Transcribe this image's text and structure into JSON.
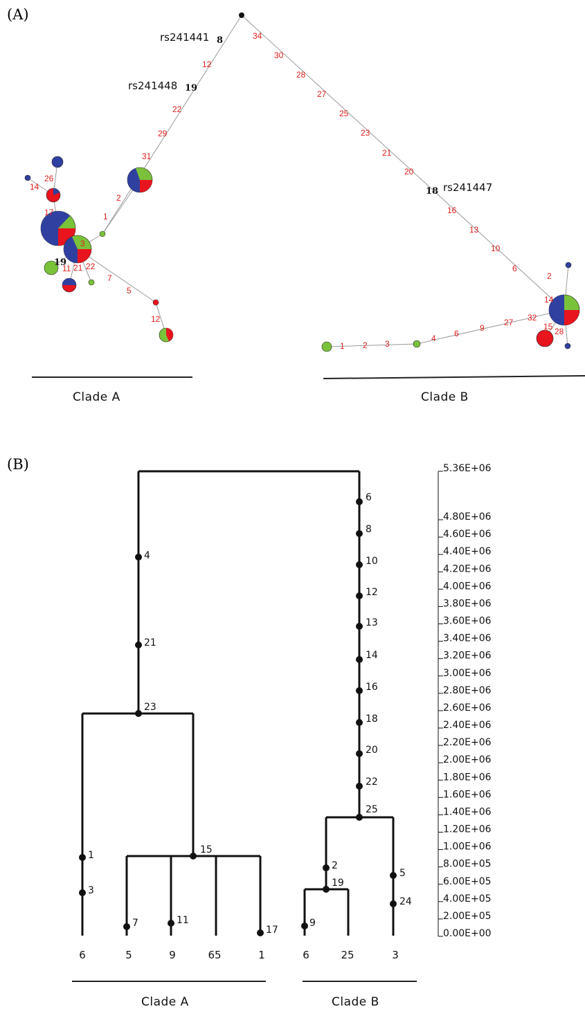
{
  "panelA": {
    "label": "(A)",
    "snp_labels": [
      "rs241441",
      "rs241448",
      "rs241447"
    ],
    "black_mutations": [
      "8",
      "19",
      "18",
      "19"
    ],
    "trunk_a": [
      "12",
      "22",
      "29",
      "31"
    ],
    "trunk_b": [
      "34",
      "30",
      "28",
      "27",
      "25",
      "23",
      "21",
      "20",
      "16",
      "13",
      "10",
      "6"
    ],
    "clade_a_misc": [
      "2",
      "1",
      "3",
      "26",
      "14",
      "17",
      "11",
      "21",
      "22",
      "7",
      "5",
      "12"
    ],
    "clade_b_misc": [
      "2",
      "14",
      "15",
      "28",
      "32",
      "27",
      "9",
      "6",
      "4",
      "3",
      "2",
      "1"
    ],
    "clade_a_title": "Clade A",
    "clade_b_title": "Clade B",
    "colors": {
      "blue": "#3040a0",
      "green": "#7ac23a",
      "red": "#e8141e"
    }
  },
  "panelB": {
    "label": "(B)",
    "clade_a_nodes": [
      "4",
      "21",
      "23",
      "15",
      "1",
      "3",
      "7",
      "11",
      "17"
    ],
    "clade_b_nodes": [
      "6",
      "8",
      "10",
      "12",
      "13",
      "14",
      "16",
      "18",
      "20",
      "22",
      "25",
      "2",
      "19",
      "9",
      "5",
      "24"
    ],
    "leaf_counts": [
      "6",
      "5",
      "9",
      "65",
      "1",
      "6",
      "25",
      "3"
    ],
    "clade_a_title": "Clade A",
    "clade_b_title": "Clade B",
    "scale_top": "5.36E+06",
    "scale_ticks": [
      "4.80E+06",
      "4.60E+06",
      "4.40E+06",
      "4.20E+06",
      "4.00E+06",
      "3.80E+06",
      "3.60E+06",
      "3.40E+06",
      "3.20E+06",
      "3.00E+06",
      "2.80E+06",
      "2.60E+06",
      "2.40E+06",
      "2.20E+06",
      "2.00E+06",
      "1.80E+06",
      "1.60E+06",
      "1.40E+06",
      "1.20E+06",
      "1.00E+06",
      "8.00E+05",
      "6.00E+05",
      "4.00E+05",
      "2.00E+05",
      "0.00E+00"
    ]
  }
}
